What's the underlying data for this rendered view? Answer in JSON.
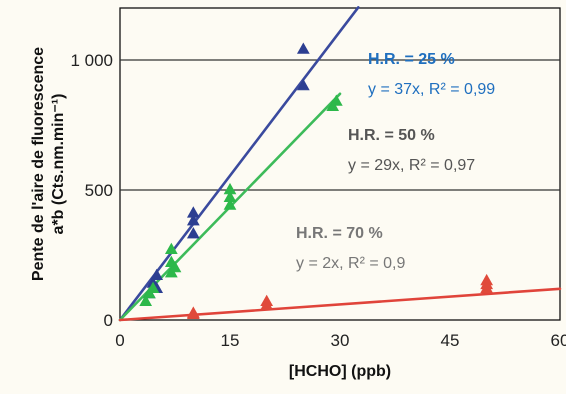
{
  "chart_data": {
    "type": "scatter",
    "title": "",
    "xlabel": "[HCHO] (ppb)",
    "ylabel_line1": "Pente de l'aire de fluorescence",
    "ylabel_line2": "a*b (Cts.nm.min⁻¹)",
    "xlim": [
      0,
      60
    ],
    "ylim": [
      0,
      1200
    ],
    "xticks": [
      0,
      15,
      30,
      45,
      60
    ],
    "xtick_labels": [
      "0",
      "15",
      "30",
      "45",
      "60"
    ],
    "yticks": [
      0,
      500,
      1000
    ],
    "ytick_labels": [
      "0",
      "500",
      "1 000"
    ],
    "grid": "horizontal",
    "series": [
      {
        "name": "H.R. = 25 %",
        "marker": "triangle",
        "color": "#2c3e91",
        "fit_color": "#3a4a9e",
        "slope": 37,
        "fit_x": [
          0,
          32.5
        ],
        "points": [
          {
            "x": 4,
            "y": 100
          },
          {
            "x": 4.5,
            "y": 140
          },
          {
            "x": 5,
            "y": 120
          },
          {
            "x": 5,
            "y": 170
          },
          {
            "x": 10,
            "y": 330
          },
          {
            "x": 10,
            "y": 380
          },
          {
            "x": 10,
            "y": 410
          },
          {
            "x": 25,
            "y": 900
          },
          {
            "x": 25,
            "y": 1040
          }
        ]
      },
      {
        "name": "H.R. = 50 %",
        "marker": "triangle",
        "color": "#2db84a",
        "fit_color": "#3dbb5a",
        "slope": 29,
        "fit_x": [
          0,
          30
        ],
        "points": [
          {
            "x": 3.5,
            "y": 70
          },
          {
            "x": 4,
            "y": 100
          },
          {
            "x": 4.5,
            "y": 120
          },
          {
            "x": 7,
            "y": 180
          },
          {
            "x": 7,
            "y": 220
          },
          {
            "x": 7,
            "y": 270
          },
          {
            "x": 7.5,
            "y": 200
          },
          {
            "x": 15,
            "y": 440
          },
          {
            "x": 15,
            "y": 470
          },
          {
            "x": 15,
            "y": 500
          },
          {
            "x": 29,
            "y": 820
          },
          {
            "x": 29.5,
            "y": 840
          }
        ]
      },
      {
        "name": "H.R. = 70 %",
        "marker": "triangle",
        "color": "#e04a3a",
        "fit_color": "#e0443a",
        "slope": 2,
        "fit_x": [
          0,
          60
        ],
        "points": [
          {
            "x": 10,
            "y": 20
          },
          {
            "x": 10,
            "y": 25
          },
          {
            "x": 20,
            "y": 55
          },
          {
            "x": 20,
            "y": 70
          },
          {
            "x": 50,
            "y": 120
          },
          {
            "x": 50,
            "y": 135
          },
          {
            "x": 50,
            "y": 150
          }
        ]
      }
    ],
    "annotations": [
      {
        "label": "H.R. = 25 %",
        "equation": "y = 37x, R² = 0,99",
        "label_color": "#1f6fbf",
        "equation_color": "#1f6fbf"
      },
      {
        "label": "H.R. = 50 %",
        "equation": "y = 29x, R² = 0,97",
        "label_color": "#555555",
        "equation_color": "#555555"
      },
      {
        "label": "H.R. = 70 %",
        "equation": "y = 2x, R² = 0,9",
        "label_color": "#777777",
        "equation_color": "#777777"
      }
    ]
  }
}
